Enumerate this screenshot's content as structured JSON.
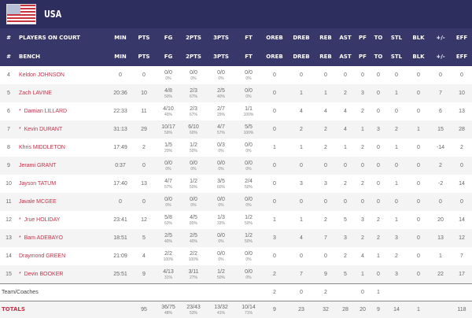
{
  "team": {
    "name": "USA",
    "flag": "us-flag"
  },
  "headers_court": [
    "#",
    "PLAYERS ON COURT",
    "MIN",
    "PTS",
    "FG",
    "2PTS",
    "3PTS",
    "FT",
    "OREB",
    "DREB",
    "REB",
    "AST",
    "PF",
    "TO",
    "STL",
    "BLK",
    "+/-",
    "EFF"
  ],
  "headers_bench": [
    "#",
    "BENCH",
    "MIN",
    "PTS",
    "FG",
    "2PTS",
    "3PTS",
    "FT",
    "OREB",
    "DREB",
    "REB",
    "AST",
    "PF",
    "TO",
    "STL",
    "BLK",
    "+/-",
    "EFF"
  ],
  "players": [
    {
      "no": "4",
      "name": "Keldon JOHNSON",
      "starter": false,
      "min": "0",
      "pts": "0",
      "fg": [
        "0/0",
        "0%"
      ],
      "p2": [
        "0/0",
        "0%"
      ],
      "p3": [
        "0/0",
        "0%"
      ],
      "ft": [
        "0/0",
        "0%"
      ],
      "stats": [
        "0",
        "0",
        "0",
        "0",
        "0",
        "0",
        "0",
        "0",
        "0",
        "0"
      ]
    },
    {
      "no": "5",
      "name": "Zach LAVINE",
      "starter": false,
      "min": "20:36",
      "pts": "10",
      "fg": [
        "4/8",
        "50%"
      ],
      "p2": [
        "2/3",
        "67%"
      ],
      "p3": [
        "2/5",
        "40%"
      ],
      "ft": [
        "0/0",
        "0%"
      ],
      "stats": [
        "0",
        "1",
        "1",
        "2",
        "3",
        "0",
        "1",
        "0",
        "7",
        "10"
      ]
    },
    {
      "no": "6",
      "name": "Damian LILLARD",
      "starter": true,
      "min": "22:33",
      "pts": "11",
      "fg": [
        "4/10",
        "40%"
      ],
      "p2": [
        "2/3",
        "67%"
      ],
      "p3": [
        "2/7",
        "29%"
      ],
      "ft": [
        "1/1",
        "100%"
      ],
      "stats": [
        "0",
        "4",
        "4",
        "4",
        "2",
        "0",
        "0",
        "0",
        "6",
        "13"
      ]
    },
    {
      "no": "7",
      "name": "Kevin DURANT",
      "starter": true,
      "min": "31:13",
      "pts": "29",
      "fg": [
        "10/17",
        "59%"
      ],
      "p2": [
        "6/10",
        "60%"
      ],
      "p3": [
        "4/7",
        "57%"
      ],
      "ft": [
        "5/5",
        "100%"
      ],
      "stats": [
        "0",
        "2",
        "2",
        "4",
        "1",
        "3",
        "2",
        "1",
        "15",
        "28"
      ]
    },
    {
      "no": "8",
      "name": "Khris MIDDLETON",
      "starter": false,
      "min": "17:49",
      "pts": "2",
      "fg": [
        "1/5",
        "20%"
      ],
      "p2": [
        "1/2",
        "50%"
      ],
      "p3": [
        "0/3",
        "0%"
      ],
      "ft": [
        "0/0",
        "0%"
      ],
      "stats": [
        "1",
        "1",
        "2",
        "1",
        "2",
        "0",
        "1",
        "0",
        "-14",
        "2"
      ]
    },
    {
      "no": "9",
      "name": "Jerami GRANT",
      "starter": false,
      "min": "0:37",
      "pts": "0",
      "fg": [
        "0/0",
        "0%"
      ],
      "p2": [
        "0/0",
        "0%"
      ],
      "p3": [
        "0/0",
        "0%"
      ],
      "ft": [
        "0/0",
        "0%"
      ],
      "stats": [
        "0",
        "0",
        "0",
        "0",
        "0",
        "0",
        "0",
        "0",
        "2",
        "0"
      ]
    },
    {
      "no": "10",
      "name": "Jayson TATUM",
      "starter": false,
      "min": "17:40",
      "pts": "13",
      "fg": [
        "4/7",
        "57%"
      ],
      "p2": [
        "1/2",
        "50%"
      ],
      "p3": [
        "3/5",
        "60%"
      ],
      "ft": [
        "2/4",
        "50%"
      ],
      "stats": [
        "0",
        "3",
        "3",
        "2",
        "2",
        "0",
        "1",
        "0",
        "-2",
        "14"
      ]
    },
    {
      "no": "11",
      "name": "Javale MCGEE",
      "starter": false,
      "min": "0",
      "pts": "0",
      "fg": [
        "0/0",
        "0%"
      ],
      "p2": [
        "0/0",
        "0%"
      ],
      "p3": [
        "0/0",
        "0%"
      ],
      "ft": [
        "0/0",
        "0%"
      ],
      "stats": [
        "0",
        "0",
        "0",
        "0",
        "0",
        "0",
        "0",
        "0",
        "0",
        "0"
      ]
    },
    {
      "no": "12",
      "name": "Jrue HOLIDAY",
      "starter": true,
      "min": "23:41",
      "pts": "12",
      "fg": [
        "5/8",
        "63%"
      ],
      "p2": [
        "4/5",
        "80%"
      ],
      "p3": [
        "1/3",
        "33%"
      ],
      "ft": [
        "1/2",
        "50%"
      ],
      "stats": [
        "1",
        "1",
        "2",
        "5",
        "3",
        "2",
        "1",
        "0",
        "20",
        "14"
      ]
    },
    {
      "no": "13",
      "name": "Bam ADEBAYO",
      "starter": true,
      "min": "18:51",
      "pts": "5",
      "fg": [
        "2/5",
        "40%"
      ],
      "p2": [
        "2/5",
        "40%"
      ],
      "p3": [
        "0/0",
        "0%"
      ],
      "ft": [
        "1/2",
        "50%"
      ],
      "stats": [
        "3",
        "4",
        "7",
        "3",
        "2",
        "2",
        "3",
        "0",
        "13",
        "12"
      ]
    },
    {
      "no": "14",
      "name": "Draymond GREEN",
      "starter": false,
      "min": "21:09",
      "pts": "4",
      "fg": [
        "2/2",
        "100%"
      ],
      "p2": [
        "2/2",
        "100%"
      ],
      "p3": [
        "0/0",
        "0%"
      ],
      "ft": [
        "0/0",
        "0%"
      ],
      "stats": [
        "0",
        "0",
        "0",
        "2",
        "4",
        "1",
        "2",
        "0",
        "1",
        "7"
      ]
    },
    {
      "no": "15",
      "name": "Devin BOOKER",
      "starter": true,
      "min": "25:51",
      "pts": "9",
      "fg": [
        "4/13",
        "31%"
      ],
      "p2": [
        "3/11",
        "27%"
      ],
      "p3": [
        "1/2",
        "50%"
      ],
      "ft": [
        "0/0",
        "0%"
      ],
      "stats": [
        "2",
        "7",
        "9",
        "5",
        "1",
        "0",
        "3",
        "0",
        "22",
        "17"
      ]
    }
  ],
  "team_coaches": {
    "label": "Team/Coaches",
    "stats": [
      "2",
      "0",
      "2",
      "",
      "0",
      "1",
      "",
      "",
      "",
      ""
    ]
  },
  "totals": {
    "label": "TOTALS",
    "pts": "95",
    "fg": [
      "36/75",
      "48%"
    ],
    "p2": [
      "23/43",
      "53%"
    ],
    "p3": [
      "13/32",
      "41%"
    ],
    "ft": [
      "10/14",
      "71%"
    ],
    "stats": [
      "9",
      "23",
      "32",
      "28",
      "20",
      "9",
      "14",
      "1",
      "",
      "118"
    ]
  },
  "starter_marker": "*"
}
